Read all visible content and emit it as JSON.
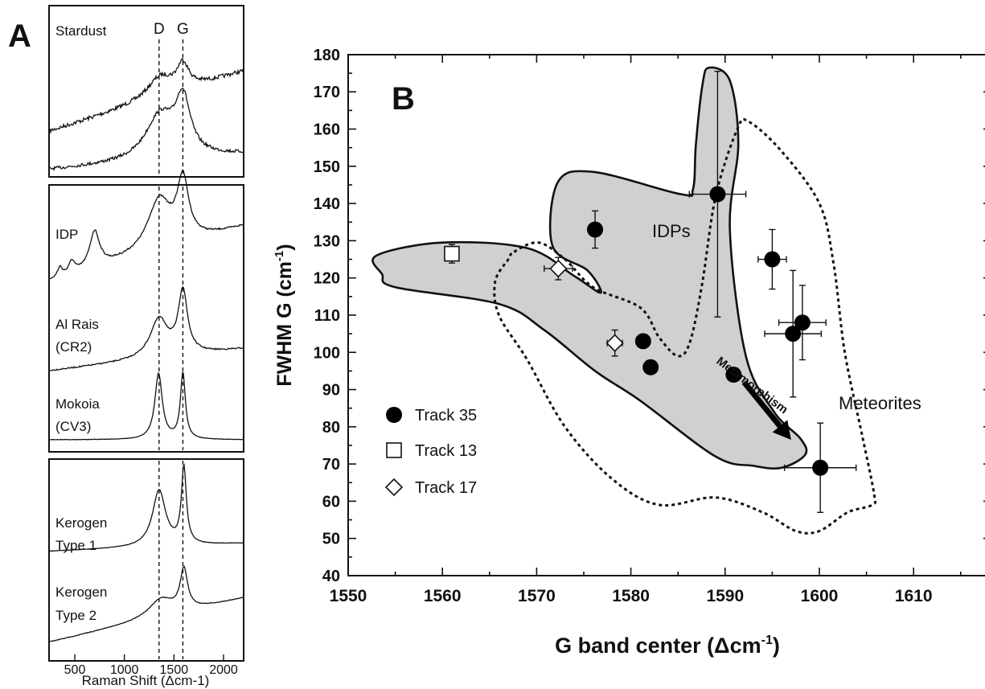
{
  "panel_a": {
    "label": "A",
    "dline_labels": [
      "D",
      "G"
    ],
    "sections": [
      {
        "spectra": [
          {
            "label_lines": [
              "Stardust"
            ]
          },
          {
            "label_lines": []
          }
        ]
      },
      {
        "spectra": [
          {
            "label_lines": [
              "IDP"
            ]
          },
          {
            "label_lines": [
              "Al Rais",
              "(CR2)"
            ]
          },
          {
            "label_lines": [
              "Mokoia",
              "(CV3)"
            ]
          }
        ]
      },
      {
        "spectra": [
          {
            "label_lines": [
              "Kerogen",
              "Type 1"
            ]
          },
          {
            "label_lines": [
              "Kerogen",
              "Type 2"
            ]
          }
        ]
      }
    ],
    "x_ticks": [
      "500",
      "1000",
      "1500",
      "2000"
    ],
    "x_label": "Raman Shift (Δcm-1)"
  },
  "panel_b": {
    "label": "B",
    "y_ticks": [
      "40",
      "50",
      "60",
      "70",
      "80",
      "90",
      "100",
      "110",
      "120",
      "130",
      "140",
      "150",
      "160",
      "170",
      "180"
    ],
    "x_ticks": [
      "1550",
      "1560",
      "1570",
      "1580",
      "1590",
      "1600",
      "1610"
    ],
    "y_label_main": "FWHM G (cm",
    "y_label_sup": "-1",
    "y_label_end": ")",
    "x_label_main": "G band center (Δcm",
    "x_label_sup": "-1",
    "x_label_end": ")",
    "region_labels": {
      "idps": "IDPs",
      "meteorites": "Meteorites"
    },
    "arrow_label": "Metamorphism",
    "legend": [
      {
        "marker": "filled-circle",
        "label": "Track 35"
      },
      {
        "marker": "open-square",
        "label": "Track 13"
      },
      {
        "marker": "open-diamond",
        "label": "Track 17"
      }
    ]
  },
  "chart_data": [
    {
      "type": "line",
      "title": "",
      "xlabel": "Raman Shift (Δcm-1)",
      "ylabel": "",
      "xlim": [
        200,
        2250
      ],
      "dashed_lines": [
        {
          "name": "D",
          "x": 1350
        },
        {
          "name": "G",
          "x": 1590
        }
      ],
      "series": [
        {
          "name": "Stardust",
          "peaks": [
            1350,
            1590
          ],
          "style": "noisy"
        },
        {
          "name": "",
          "peaks": [
            1350,
            1590
          ],
          "style": "noisy"
        },
        {
          "name": "IDP",
          "peaks": [
            350,
            470,
            700,
            1350,
            1590
          ]
        },
        {
          "name": "Al Rais (CR2)",
          "peaks": [
            1350,
            1590
          ]
        },
        {
          "name": "Mokoia (CV3)",
          "peaks": [
            1350,
            1590
          ]
        },
        {
          "name": "Kerogen Type 1",
          "peaks": [
            1350,
            1590
          ]
        },
        {
          "name": "Kerogen Type 2",
          "peaks": [
            1350,
            1590
          ]
        }
      ]
    },
    {
      "type": "scatter",
      "title": "",
      "xlabel": "G band center (Δcm-1)",
      "ylabel": "FWHM G (cm-1)",
      "xlim": [
        1550,
        1615
      ],
      "ylim": [
        40,
        180
      ],
      "series": [
        {
          "name": "Track 35",
          "marker": "filled-circle",
          "points": [
            {
              "x": 1576.2,
              "y": 133,
              "xerr": 0.5,
              "yerr": 5
            },
            {
              "x": 1589.2,
              "y": 142.5,
              "xerr": 3,
              "yerr": 33
            },
            {
              "x": 1581.3,
              "y": 103,
              "xerr": 0,
              "yerr": 0
            },
            {
              "x": 1582.1,
              "y": 96,
              "xerr": 0,
              "yerr": 0
            },
            {
              "x": 1590.9,
              "y": 94,
              "xerr": 0,
              "yerr": 0
            },
            {
              "x": 1595.0,
              "y": 125,
              "xerr": 1.5,
              "yerr": 8
            },
            {
              "x": 1598.2,
              "y": 108,
              "xerr": 2.5,
              "yerr": 10
            },
            {
              "x": 1597.2,
              "y": 105,
              "xerr": 3,
              "yerr": 17
            },
            {
              "x": 1600.1,
              "y": 69,
              "xerr": 3.8,
              "yerr": 12
            }
          ]
        },
        {
          "name": "Track 13",
          "marker": "open-square",
          "points": [
            {
              "x": 1561.0,
              "y": 126.5,
              "xerr": 0,
              "yerr": 2.5
            }
          ]
        },
        {
          "name": "Track 17",
          "marker": "open-diamond",
          "points": [
            {
              "x": 1572.3,
              "y": 122.5,
              "xerr": 1.5,
              "yerr": 3
            },
            {
              "x": 1578.3,
              "y": 102.5,
              "xerr": 0.8,
              "yerr": 3.5
            }
          ]
        }
      ],
      "regions": [
        {
          "name": "IDPs",
          "style": "filled-gray-solid",
          "outline": [
            [
              1553.6,
              121
            ],
            [
              1553.0,
              126
            ],
            [
              1560.0,
              129.5
            ],
            [
              1569.0,
              128
            ],
            [
              1574.0,
              120.5
            ],
            [
              1576.8,
              116
            ],
            [
              1575.4,
              122
            ],
            [
              1571.7,
              128.5
            ],
            [
              1572.2,
              145.5
            ],
            [
              1576.0,
              148.5
            ],
            [
              1585.3,
              142.5
            ],
            [
              1586.6,
              144
            ],
            [
              1586.9,
              156
            ],
            [
              1587.6,
              172
            ],
            [
              1588.3,
              176.5
            ],
            [
              1590.5,
              173
            ],
            [
              1591.4,
              156
            ],
            [
              1590.5,
              133
            ],
            [
              1592.2,
              99
            ],
            [
              1595.2,
              84
            ],
            [
              1598.0,
              76.8
            ],
            [
              1598.5,
              72.5
            ],
            [
              1596.0,
              69
            ],
            [
              1593.0,
              69.5
            ],
            [
              1589.0,
              72
            ],
            [
              1581.0,
              87
            ],
            [
              1576.2,
              95
            ],
            [
              1570.8,
              106
            ],
            [
              1566.0,
              113
            ],
            [
              1555.0,
              117.5
            ]
          ]
        },
        {
          "name": "Meteorites",
          "style": "dashed-outline",
          "outline": [
            [
              1567.6,
              127
            ],
            [
              1570.2,
              129.5
            ],
            [
              1573.0,
              125
            ],
            [
              1576.0,
              117.5
            ],
            [
              1581.0,
              112
            ],
            [
              1583.0,
              104
            ],
            [
              1585.0,
              99
            ],
            [
              1586.3,
              103
            ],
            [
              1587.6,
              119
            ],
            [
              1589.0,
              142
            ],
            [
              1591.3,
              160
            ],
            [
              1592.5,
              162
            ],
            [
              1596.0,
              154
            ],
            [
              1600.0,
              140
            ],
            [
              1601.5,
              124
            ],
            [
              1602.7,
              100
            ],
            [
              1604.6,
              77
            ],
            [
              1605.8,
              62
            ],
            [
              1605.6,
              59
            ],
            [
              1603.0,
              57
            ],
            [
              1600.0,
              52
            ],
            [
              1597.5,
              52
            ],
            [
              1594.0,
              57
            ],
            [
              1589.0,
              61
            ],
            [
              1583.0,
              59
            ],
            [
              1578.0,
              66
            ],
            [
              1573.0,
              80
            ],
            [
              1569.0,
              98
            ],
            [
              1566.0,
              110
            ],
            [
              1565.6,
              119
            ],
            [
              1567.0,
              125
            ]
          ]
        }
      ],
      "annotations": [
        {
          "text": "Metamorphism",
          "type": "arrow",
          "from": [
            1592.0,
            92
          ],
          "to": [
            1597.0,
            76.5
          ]
        }
      ],
      "legend_position": "bottom-left"
    }
  ]
}
